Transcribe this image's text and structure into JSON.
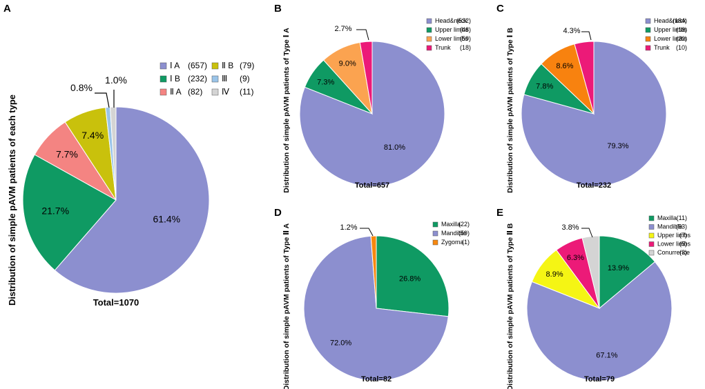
{
  "figure": {
    "colors": {
      "IA": "#8c8fcf",
      "IB": "#0f9a63",
      "IIA": "#f48482",
      "IIB": "#c9c10c",
      "III": "#9ac4e8",
      "IV": "#d4d4d4",
      "headneck": "#8c8fcf",
      "upper_green": "#0f9a63",
      "lower_orange_B": "#fba350",
      "lower_orange_C": "#f8820f",
      "trunk": "#ec1a78",
      "zygoma": "#f7880f",
      "upper_yellow": "#f5f514",
      "lower_pink": "#ec1a78",
      "conurrence": "#d4d4d4"
    }
  },
  "chart_data": [
    {
      "panel": "A",
      "type": "pie",
      "ylabel": "Distribution of simple pAVM patients of each type",
      "total_label": "Total=1070",
      "legend_columns": 2,
      "slices": [
        {
          "name": "Ⅰ A",
          "count": "(657)",
          "value": 61.4,
          "label": "61.4%",
          "color": "#8c8fcf"
        },
        {
          "name": "Ⅰ B",
          "count": "(232)",
          "value": 21.7,
          "label": "21.7%",
          "color": "#0f9a63"
        },
        {
          "name": "Ⅱ A",
          "count": "(82)",
          "value": 7.7,
          "label": "7.7%",
          "color": "#f48482"
        },
        {
          "name": "Ⅱ B",
          "count": "(79)",
          "value": 7.4,
          "label": "7.4%",
          "color": "#c9c10c"
        },
        {
          "name": "Ⅲ",
          "count": "(9)",
          "value": 0.8,
          "label": "0.8%",
          "color": "#9ac4e8"
        },
        {
          "name": "Ⅳ",
          "count": "(11)",
          "value": 1.0,
          "label": "1.0%",
          "color": "#d4d4d4"
        }
      ]
    },
    {
      "panel": "B",
      "type": "pie",
      "ylabel": "Distribution of simple pAVM patients of Type Ⅰ A",
      "total_label": "Total=657",
      "legend_columns": 1,
      "slices": [
        {
          "name": "Head&neck",
          "count": "(532)",
          "value": 81.0,
          "label": "81.0%",
          "color": "#8c8fcf"
        },
        {
          "name": "Upper limbs",
          "count": "(48)",
          "value": 7.3,
          "label": "7.3%",
          "color": "#0f9a63"
        },
        {
          "name": "Lower limbs",
          "count": "(59)",
          "value": 9.0,
          "label": "9.0%",
          "color": "#fba350"
        },
        {
          "name": "Trunk",
          "count": "(18)",
          "value": 2.7,
          "label": "2.7%",
          "color": "#ec1a78"
        }
      ]
    },
    {
      "panel": "C",
      "type": "pie",
      "ylabel": "Distribution of simple pAVM patients of Type Ⅰ B",
      "total_label": "Total=232",
      "legend_columns": 1,
      "slices": [
        {
          "name": "Head&neck",
          "count": "(184)",
          "value": 79.3,
          "label": "79.3%",
          "color": "#8c8fcf"
        },
        {
          "name": "Upper limbs",
          "count": "(18)",
          "value": 7.8,
          "label": "7.8%",
          "color": "#0f9a63"
        },
        {
          "name": "Lower limbs",
          "count": "(20)",
          "value": 8.6,
          "label": "8.6%",
          "color": "#f8820f"
        },
        {
          "name": "Trunk",
          "count": "(10)",
          "value": 4.3,
          "label": "4.3%",
          "color": "#ec1a78"
        }
      ]
    },
    {
      "panel": "D",
      "type": "pie",
      "ylabel": "Distribution of simple pAVM patients of Type Ⅱ A",
      "total_label": "Total=82",
      "legend_columns": 1,
      "slices": [
        {
          "name": "Maxilla",
          "count": "(22)",
          "value": 26.8,
          "label": "26.8%",
          "color": "#0f9a63"
        },
        {
          "name": "Mandible",
          "count": "(59)",
          "value": 72.0,
          "label": "72.0%",
          "color": "#8c8fcf"
        },
        {
          "name": "Zygoma",
          "count": "(1)",
          "value": 1.2,
          "label": "1.2%",
          "color": "#f7880f"
        }
      ]
    },
    {
      "panel": "E",
      "type": "pie",
      "ylabel": "Distribution of simple pAVM patients of Type Ⅱ B",
      "total_label": "Total=79",
      "legend_columns": 1,
      "slices": [
        {
          "name": "Maxilla",
          "count": "(11)",
          "value": 13.9,
          "label": "13.9%",
          "color": "#0f9a63"
        },
        {
          "name": "Mandible",
          "count": "(53)",
          "value": 67.1,
          "label": "67.1%",
          "color": "#8c8fcf"
        },
        {
          "name": "Upper limbs",
          "count": "(7)",
          "value": 8.9,
          "label": "8.9%",
          "color": "#f5f514"
        },
        {
          "name": "Lower limbs",
          "count": "(5)",
          "value": 6.3,
          "label": "6.3%",
          "color": "#ec1a78"
        },
        {
          "name": "Conurrence",
          "count": "(3)",
          "value": 3.8,
          "label": "3.8%",
          "color": "#d4d4d4"
        }
      ]
    }
  ]
}
